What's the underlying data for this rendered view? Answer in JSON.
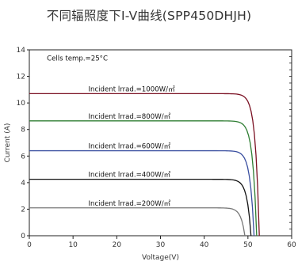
{
  "chart_data": {
    "type": "line",
    "title": "不同辐照度下I-V曲线(SPP450DHJH)",
    "xlabel": "Voltage(V)",
    "ylabel": "Current (A)",
    "xlim": [
      0,
      60
    ],
    "ylim": [
      0,
      14
    ],
    "x_ticks": [
      0,
      10,
      20,
      30,
      40,
      50,
      60
    ],
    "y_ticks": [
      0,
      2,
      4,
      6,
      8,
      10,
      12,
      14
    ],
    "grid": false,
    "annotation_temp": "Cells temp.=25°C",
    "series": [
      {
        "name": "Incident lrrad.=1000W/㎡",
        "color": "#7a1022",
        "isc": 10.7,
        "voc": 52.6,
        "vmp": 44.5,
        "imp": 10.1
      },
      {
        "name": "Incident lrrad.=800W/㎡",
        "color": "#2e7d32",
        "isc": 8.65,
        "voc": 52.0,
        "vmp": 44.2,
        "imp": 8.15
      },
      {
        "name": "Incident lrrad.=600W/㎡",
        "color": "#3a4fa0",
        "isc": 6.4,
        "voc": 51.4,
        "vmp": 43.8,
        "imp": 6.0
      },
      {
        "name": "Incident lrrad.=400W/㎡",
        "color": "#111111",
        "isc": 4.25,
        "voc": 50.7,
        "vmp": 43.4,
        "imp": 3.95
      },
      {
        "name": "Incident lrrad.=200W/㎡",
        "color": "#777777",
        "isc": 2.1,
        "voc": 49.3,
        "vmp": 42.6,
        "imp": 1.95
      }
    ]
  }
}
